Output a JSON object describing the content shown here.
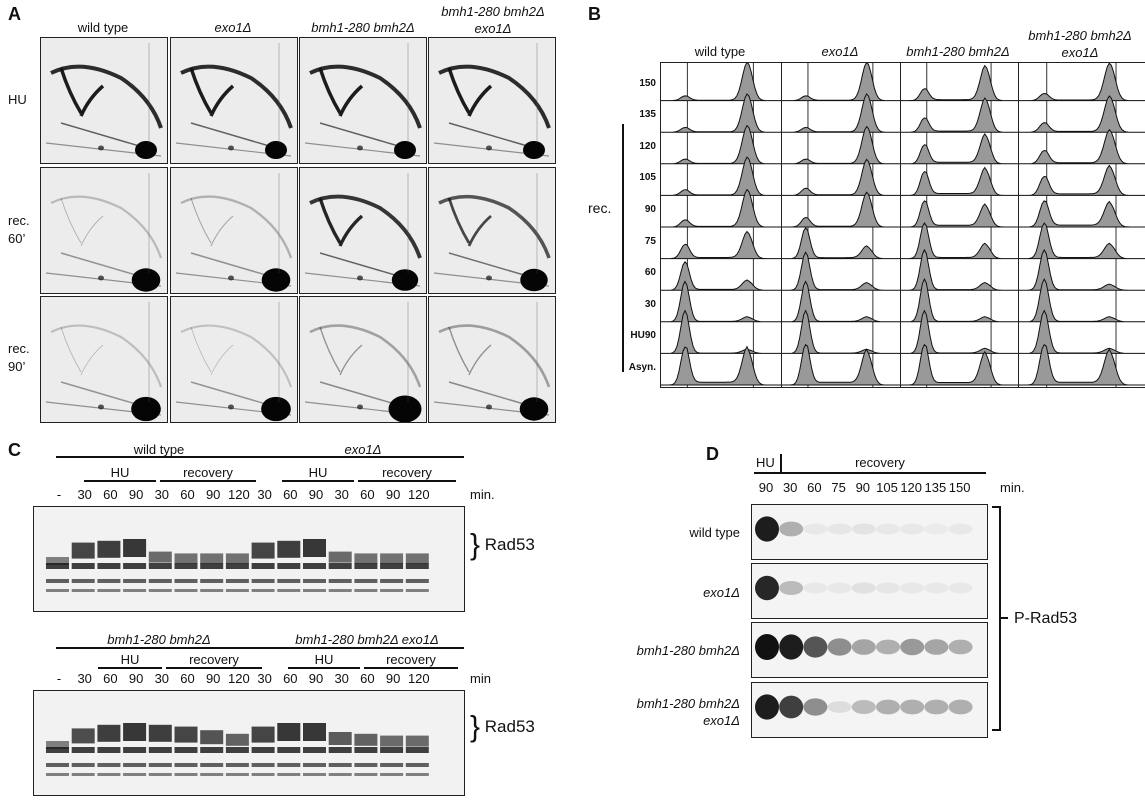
{
  "panel_a": {
    "letter": "A",
    "columns": [
      "wild type",
      "exo1Δ",
      "bmh1-280 bmh2Δ",
      "bmh1-280 bmh2Δ exo1Δ"
    ],
    "column_lines": [
      [
        "wild type"
      ],
      [
        "exo1Δ"
      ],
      [
        "bmh1-280 bmh2Δ"
      ],
      [
        "bmh1-280 bmh2Δ",
        "exo1Δ"
      ]
    ],
    "rows": [
      [
        "HU"
      ],
      [
        "rec.",
        "60’"
      ],
      [
        "rec.",
        "90’"
      ]
    ]
  },
  "panel_b": {
    "letter": "B",
    "columns": [
      "wild type",
      "exo1Δ",
      "bmh1-280 bmh2Δ",
      "bmh1-280 bmh2Δ exo1Δ"
    ],
    "column_lines": [
      [
        "wild type"
      ],
      [
        "exo1Δ"
      ],
      [
        "bmh1-280 bmh2Δ"
      ],
      [
        "bmh1-280 bmh2Δ",
        "exo1Δ"
      ]
    ],
    "rec_label": "rec.",
    "timepoints": [
      "150",
      "135",
      "120",
      "105",
      "90",
      "75",
      "60",
      "30",
      "HU90",
      "Asyn."
    ]
  },
  "panel_c": {
    "letter": "C",
    "top": {
      "strains": [
        "wild type",
        "exo1Δ"
      ],
      "groups": [
        "HU",
        "recovery",
        "HU",
        "recovery"
      ],
      "lanes": [
        "-",
        "30",
        "60",
        "90",
        "30",
        "60",
        "90",
        "120",
        "30",
        "60",
        "90",
        "30",
        "60",
        "90",
        "120"
      ],
      "unit": "min.",
      "protein": "Rad53"
    },
    "bottom": {
      "strains": [
        "bmh1-280 bmh2Δ",
        "bmh1-280 bmh2Δ exo1Δ"
      ],
      "groups": [
        "HU",
        "recovery",
        "HU",
        "recovery"
      ],
      "lanes": [
        "-",
        "30",
        "60",
        "90",
        "30",
        "60",
        "90",
        "120",
        "30",
        "60",
        "90",
        "30",
        "60",
        "90",
        "120"
      ],
      "unit": "min",
      "protein": "Rad53"
    }
  },
  "panel_d": {
    "letter": "D",
    "hu_label": "HU",
    "recovery_label": "recovery",
    "lanes": [
      "90",
      "30",
      "60",
      "75",
      "90",
      "105",
      "120",
      "135",
      "150"
    ],
    "unit": "min.",
    "rows": [
      [
        "wild type"
      ],
      [
        "exo1Δ"
      ],
      [
        "bmh1-280 bmh2Δ"
      ],
      [
        "bmh1-280 bmh2Δ",
        "exo1Δ"
      ]
    ],
    "protein": "P-Rad53",
    "band_intensity": [
      [
        0.95,
        0.3,
        0.05,
        0.06,
        0.07,
        0.05,
        0.05,
        0.04,
        0.05
      ],
      [
        0.9,
        0.25,
        0.05,
        0.05,
        0.08,
        0.06,
        0.05,
        0.05,
        0.05
      ],
      [
        1.0,
        0.95,
        0.7,
        0.45,
        0.35,
        0.3,
        0.4,
        0.35,
        0.3
      ],
      [
        0.95,
        0.8,
        0.45,
        0.1,
        0.25,
        0.3,
        0.3,
        0.3,
        0.3
      ]
    ]
  }
}
